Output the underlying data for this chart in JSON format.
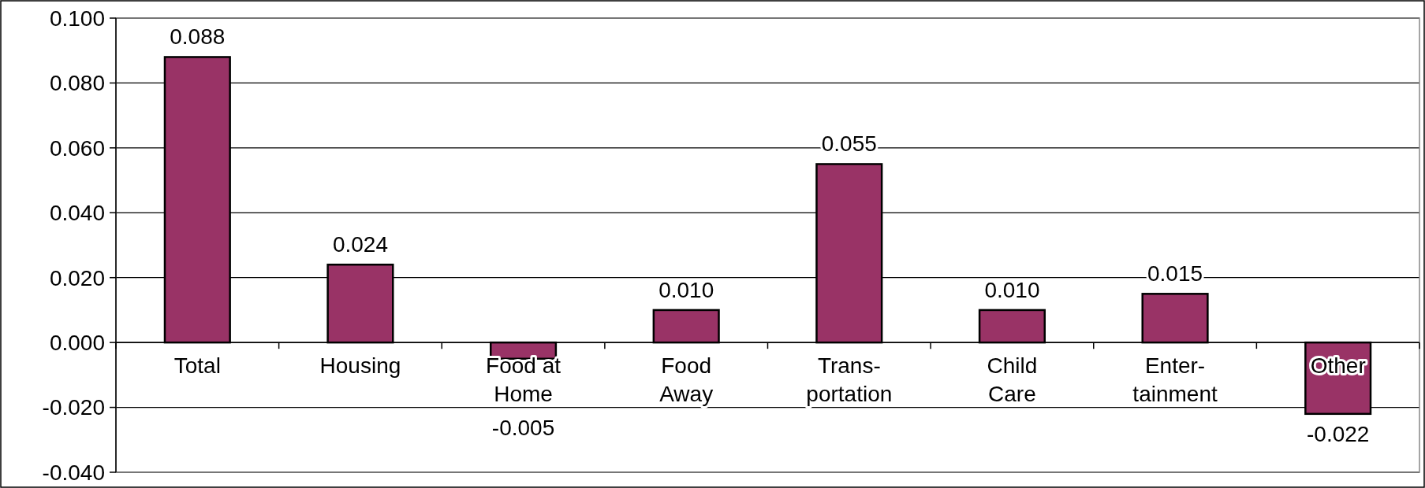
{
  "chart_data": {
    "type": "bar",
    "categories": [
      "Total",
      "Housing",
      "Food at Home",
      "Food Away",
      "Trans-portation",
      "Child Care",
      "Enter-tainment",
      "Other"
    ],
    "values": [
      0.088,
      0.024,
      -0.005,
      0.01,
      0.055,
      0.01,
      0.015,
      -0.022
    ],
    "color": "#993366",
    "data_labels": true,
    "value_labels": [
      "0.088",
      "0.024",
      "-0.005",
      "0.010",
      "0.055",
      "0.010",
      "0.015",
      "-0.022"
    ],
    "ylim": [
      -0.04,
      0.1
    ],
    "yticks": [
      {
        "value": -0.04,
        "label": "-0.040"
      },
      {
        "value": -0.02,
        "label": "-0.020"
      },
      {
        "value": 0,
        "label": "0.000"
      },
      {
        "value": 0.02,
        "label": "0.020"
      },
      {
        "value": 0.04,
        "label": "0.040"
      },
      {
        "value": 0.06,
        "label": "0.060"
      },
      {
        "value": 0.08,
        "label": "0.080"
      },
      {
        "value": 0.1,
        "label": "0.100"
      }
    ],
    "grid": "y"
  }
}
